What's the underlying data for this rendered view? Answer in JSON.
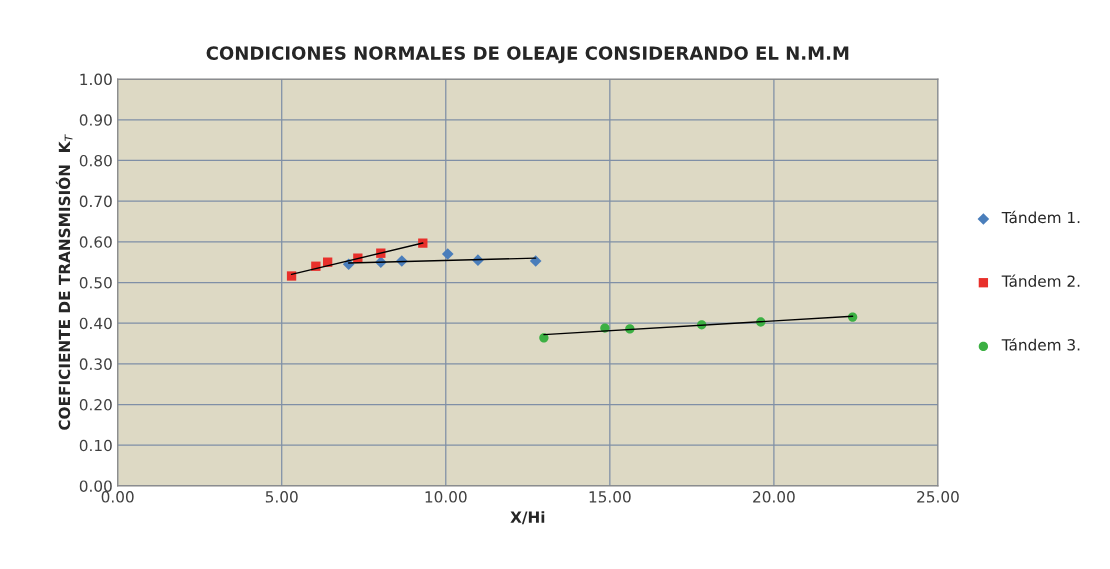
{
  "chart_data": {
    "type": "scatter",
    "title": "CONDICIONES NORMALES DE OLEAJE CONSIDERANDO EL N.M.M",
    "xlabel": "X/Hi",
    "ylabel": "COEFICIENTE DE TRANSMISIÓN  K$_{T}$",
    "xlim": [
      0,
      25
    ],
    "xticks": [
      {
        "value": 0,
        "label": "0.00"
      },
      {
        "value": 5,
        "label": "5.00"
      },
      {
        "value": 10,
        "label": "10.00"
      },
      {
        "value": 15,
        "label": "15.00"
      },
      {
        "value": 20,
        "label": "20.00"
      },
      {
        "value": 25,
        "label": "25.00"
      }
    ],
    "ylim": [
      0,
      1
    ],
    "yticks": [
      {
        "value": 0,
        "label": "0.00"
      },
      {
        "value": 0.1,
        "label": "0.10"
      },
      {
        "value": 0.2,
        "label": "0.20"
      },
      {
        "value": 0.3,
        "label": "0.30"
      },
      {
        "value": 0.4,
        "label": "0.40"
      },
      {
        "value": 0.5,
        "label": "0.50"
      },
      {
        "value": 0.6,
        "label": "0.60"
      },
      {
        "value": 0.7,
        "label": "0.70"
      },
      {
        "value": 0.8,
        "label": "0.80"
      },
      {
        "value": 0.9,
        "label": "0.90"
      },
      {
        "value": 1,
        "label": "1.00"
      }
    ],
    "grid": true,
    "legend": "right",
    "series": [
      {
        "name": "Tándem 1.",
        "color": "#4a7ebb",
        "marker": "diamond",
        "x": [
          7.04,
          8.02,
          8.66,
          10.06,
          10.98,
          12.74
        ],
        "values": [
          0.545,
          0.55,
          0.553,
          0.57,
          0.555,
          0.553
        ]
      },
      {
        "name": "Tándem 2.",
        "color": "#e8302b",
        "marker": "square",
        "x": [
          5.3,
          6.04,
          6.4,
          7.32,
          8.02,
          9.3
        ],
        "values": [
          0.516,
          0.54,
          0.55,
          0.56,
          0.572,
          0.597
        ]
      },
      {
        "name": "Tándem 3.",
        "color": "#3cb043",
        "marker": "circle",
        "x": [
          12.99,
          14.85,
          15.61,
          17.8,
          19.6,
          22.4
        ],
        "values": [
          0.364,
          0.388,
          0.386,
          0.396,
          0.403,
          0.415
        ]
      },
      {
        "type": "line",
        "color": "#000000",
        "marker": "none",
        "x": [
          7.04,
          12.74
        ],
        "values": [
          0.548,
          0.56
        ]
      },
      {
        "type": "line",
        "color": "#000000",
        "marker": "none",
        "x": [
          5.3,
          9.3
        ],
        "values": [
          0.52,
          0.597
        ]
      },
      {
        "type": "line",
        "color": "#000000",
        "marker": "none",
        "x": [
          12.99,
          22.4
        ],
        "values": [
          0.372,
          0.417
        ]
      }
    ]
  }
}
